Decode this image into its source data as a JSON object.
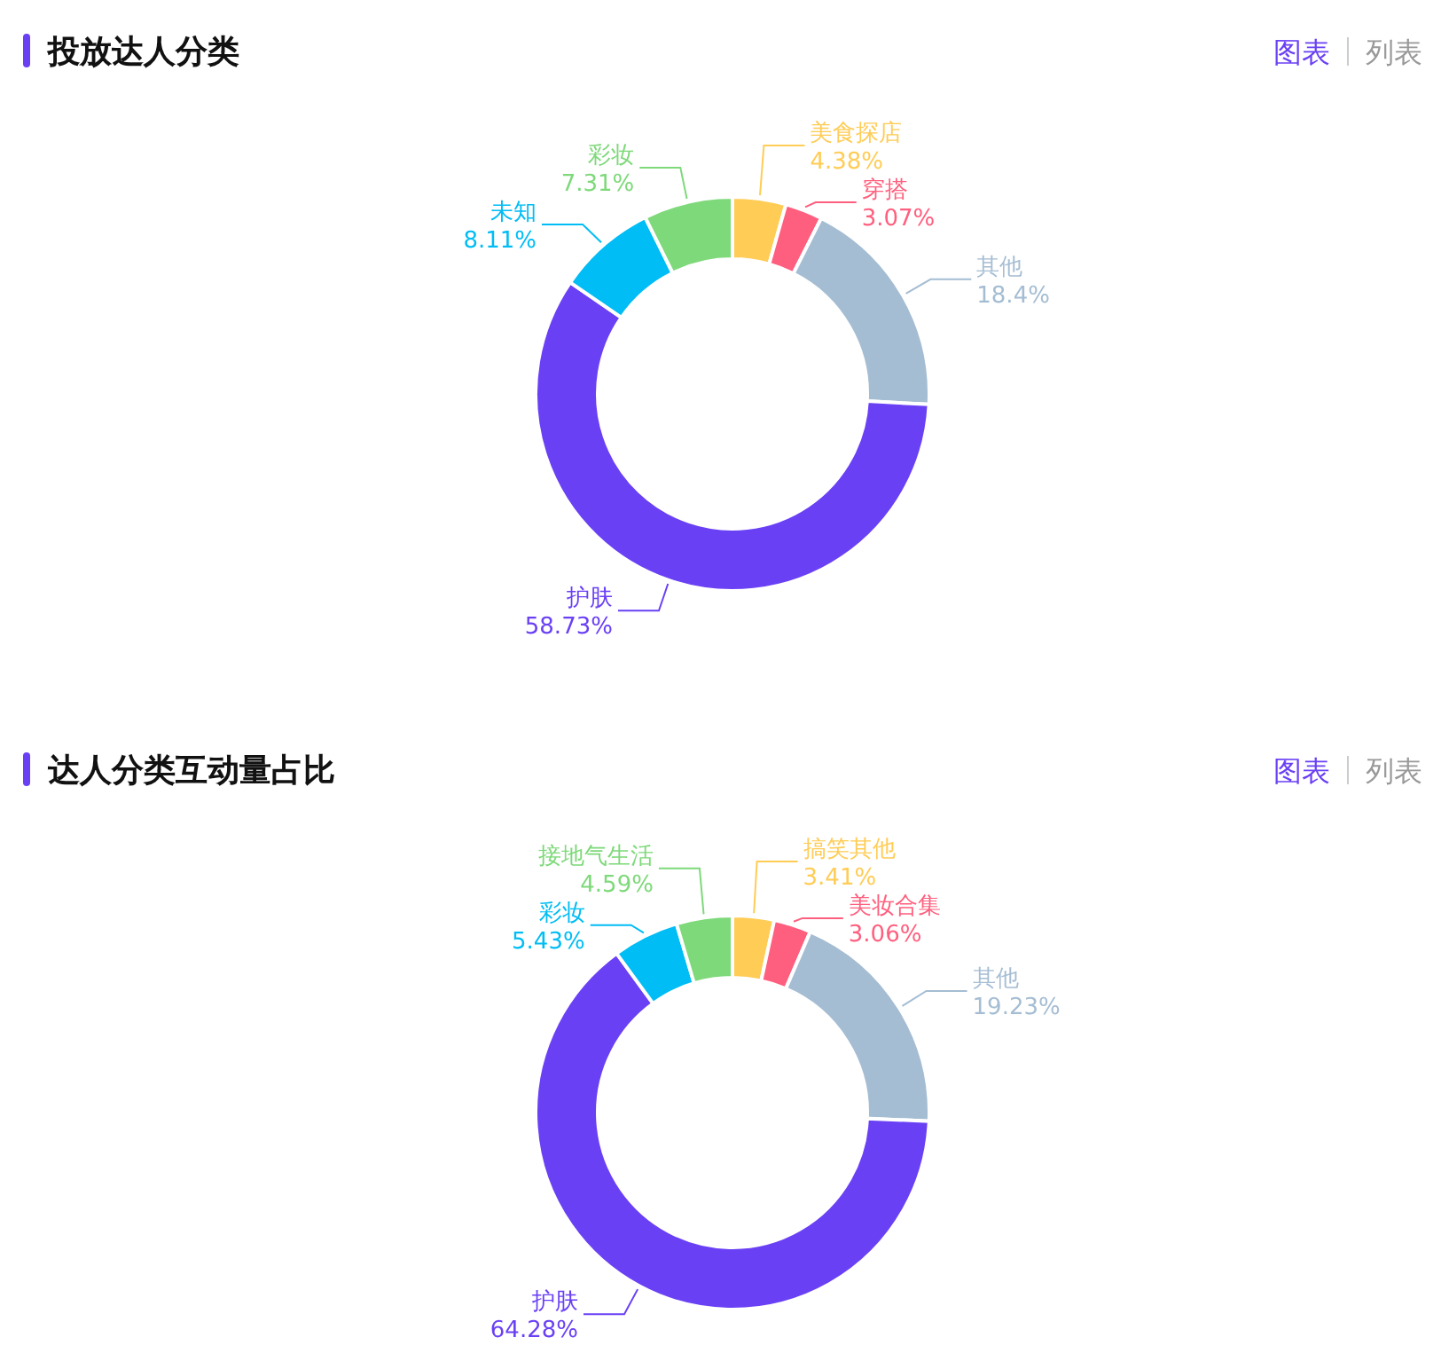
{
  "chart_data": [
    {
      "type": "donut",
      "title": "投放达人分类",
      "annotations": [
        "图表",
        "列表"
      ],
      "categories": [
        "美食探店",
        "穿搭",
        "其他",
        "护肤",
        "未知",
        "彩妆"
      ],
      "values": [
        4.38,
        3.07,
        18.4,
        58.73,
        8.11,
        7.31
      ],
      "value_labels": [
        "4.38%",
        "3.07%",
        "18.4%",
        "58.73%",
        "8.11%",
        "7.31%"
      ],
      "colors": [
        "#ffcc55",
        "#ff5f7e",
        "#a5bdd3",
        "#6a40f5",
        "#00bdf5",
        "#7ed97a"
      ]
    },
    {
      "type": "donut",
      "title": "达人分类互动量占比",
      "annotations": [
        "图表",
        "列表"
      ],
      "categories": [
        "搞笑其他",
        "美妆合集",
        "其他",
        "护肤",
        "彩妆",
        "接地气生活"
      ],
      "values": [
        3.41,
        3.06,
        19.23,
        64.28,
        5.43,
        4.59
      ],
      "value_labels": [
        "3.41%",
        "3.06%",
        "19.23%",
        "64.28%",
        "5.43%",
        "4.59%"
      ],
      "colors": [
        "#ffcc55",
        "#ff5f7e",
        "#a5bdd3",
        "#6a40f5",
        "#00bdf5",
        "#7ed97a"
      ]
    }
  ]
}
